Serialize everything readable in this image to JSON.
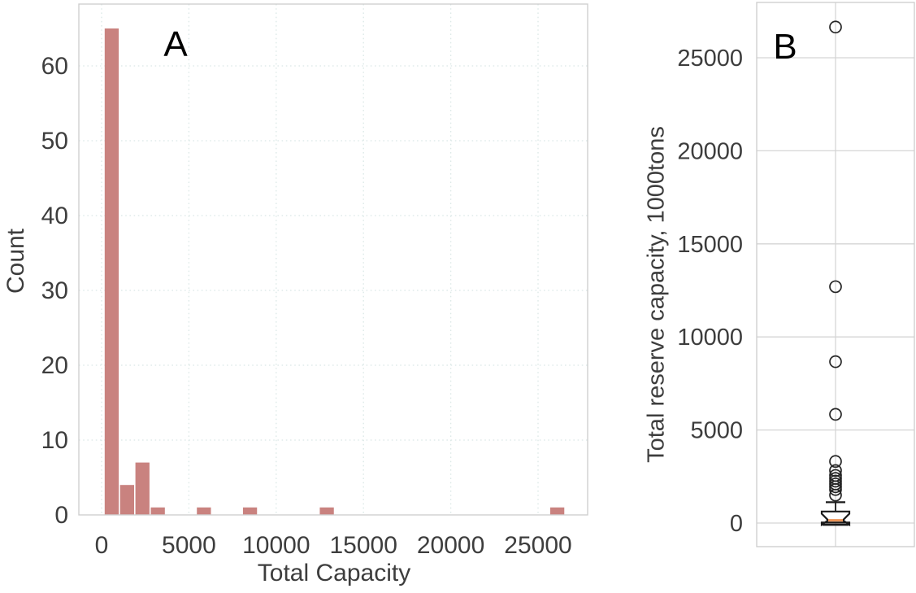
{
  "figure_title": "",
  "chart_data": [
    {
      "id": "A",
      "type": "bar",
      "subtype": "histogram",
      "panel_label": "A",
      "title": "",
      "xlabel": "Total Capacity",
      "ylabel": "Count",
      "xlim": [
        -1300,
        27840
      ],
      "ylim": [
        0,
        68.3
      ],
      "x_ticks": [
        0,
        5000,
        10000,
        15000,
        20000,
        25000
      ],
      "y_ticks": [
        0,
        10,
        20,
        30,
        40,
        50,
        60
      ],
      "grid": "dotted",
      "grid_color": "#dbe8e6",
      "bar_color": "#c9827f",
      "bin_width": 880,
      "bars": [
        {
          "bin_start": 140,
          "count": 65
        },
        {
          "bin_start": 1020,
          "count": 4
        },
        {
          "bin_start": 1900,
          "count": 7
        },
        {
          "bin_start": 2780,
          "count": 1
        },
        {
          "bin_start": 5420,
          "count": 1
        },
        {
          "bin_start": 8060,
          "count": 1
        },
        {
          "bin_start": 12460,
          "count": 1
        },
        {
          "bin_start": 25660,
          "count": 1
        }
      ]
    },
    {
      "id": "B",
      "type": "boxplot",
      "panel_label": "B",
      "title": "",
      "xlabel": "",
      "ylabel": "Total reserve capacity, 1000tons",
      "ylim": [
        -1310,
        27980
      ],
      "y_ticks": [
        0,
        5000,
        10000,
        15000,
        20000,
        25000
      ],
      "grid": "solid",
      "grid_color": "#d5d5d5",
      "box": {
        "q1": 30,
        "median": 150,
        "q3": 620,
        "notch_low": -90,
        "notch_high": 500,
        "whisker_low": -90,
        "whisker_high": 1120,
        "box_color": "#1a1a1a",
        "median_color": "#ec9254"
      },
      "outliers": [
        26650,
        12700,
        8670,
        5840,
        3310,
        2820,
        2560,
        2400,
        2250,
        2100,
        1950,
        1800,
        1500
      ]
    }
  ]
}
